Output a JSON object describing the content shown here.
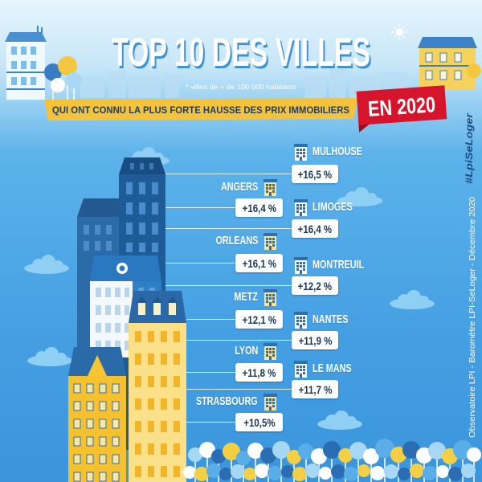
{
  "title": "TOP 10 DES VILLES",
  "footnote": "* villes de + de 100 000 habitants",
  "banner": "QUI ONT CONNU LA PLUS FORTE HAUSSE DES PRIX IMMOBILIERS",
  "year_tag": "EN 2020",
  "hashtag": "#LpiSeLoger",
  "source": "Observatoire LPI - Baromètre LPI-SeLoger - Décembre 2020",
  "cities": [
    {
      "name": "MULHOUSE",
      "change": "+16,5 %"
    },
    {
      "name": "ANGERS",
      "change": "+16,4 %"
    },
    {
      "name": "LIMOGES",
      "change": "+16,4 %"
    },
    {
      "name": "ORLEANS",
      "change": "+16,1 %"
    },
    {
      "name": "MONTREUIL",
      "change": "+12,2 %"
    },
    {
      "name": "METZ",
      "change": "+12,1 %"
    },
    {
      "name": "NANTES",
      "change": "+11,9 %"
    },
    {
      "name": "LYON",
      "change": "+11,8 %"
    },
    {
      "name": "LE MANS",
      "change": "+11,7 %"
    },
    {
      "name": "STRASBOURG",
      "change": "+10,5%"
    }
  ],
  "icons": {
    "city_marker": "building-icon",
    "cloud": "cloud-icon",
    "tree": "tree-icon"
  },
  "colors": {
    "sky": "#4aa6e6",
    "banner": "#f5c33b",
    "year_tag": "#d6142b",
    "badge_text": "#17375e",
    "hashtag": "#1c4b7f"
  }
}
